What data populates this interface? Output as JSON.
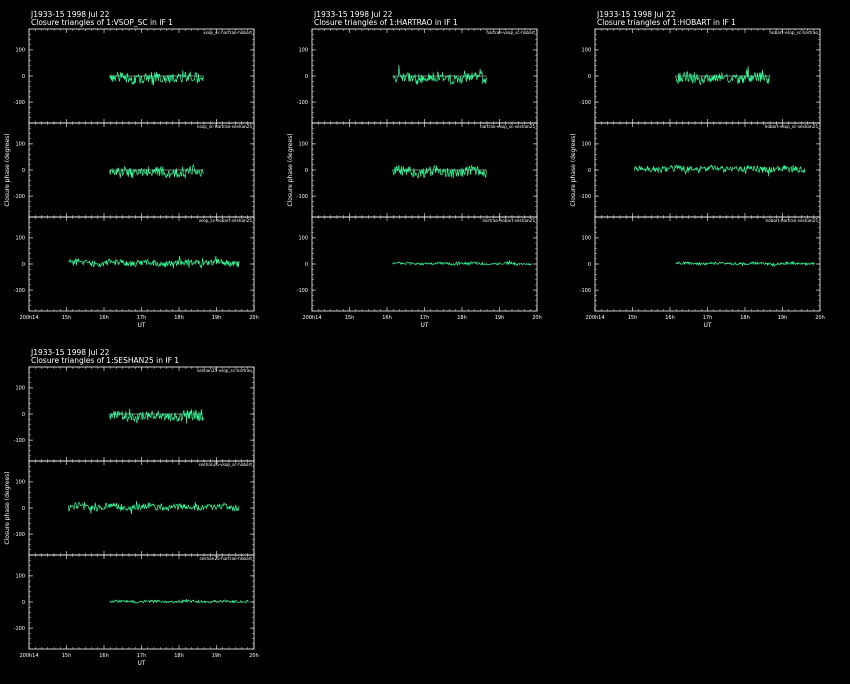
{
  "theme": {
    "background": "#000000",
    "foreground": "#ffffff",
    "trace": "#33ff99"
  },
  "chart_data": [
    {
      "type": "line",
      "title": "J1933-15  1998 Jul 22",
      "subtitle": "Closure triangles of 1:VSOP_SC in IF 1",
      "xlabel": "UT",
      "ylabel": "Closure phase   (degrees)",
      "xticks": [
        "200^h14^",
        "15^h",
        "16^h",
        "17^h",
        "18^h",
        "19^h",
        "20^h"
      ],
      "yticks": [
        "100",
        "0",
        "-100"
      ],
      "xlim": [
        14,
        20
      ],
      "ylim": [
        -180,
        180
      ],
      "panels": [
        {
          "label": "vsop_sc-hartrao-hobart",
          "x_start": 16.15,
          "x_end": 18.65,
          "spread": 24,
          "offset": -8,
          "refline": true
        },
        {
          "label": "vsop_sc-hartrao-seshan25",
          "x_start": 16.15,
          "x_end": 18.65,
          "spread": 24,
          "offset": -8,
          "refline": true
        },
        {
          "label": "vsop_sc-hobart-seshan25",
          "x_start": 15.05,
          "x_end": 19.6,
          "spread": 16,
          "offset": 4,
          "refline": false
        }
      ]
    },
    {
      "type": "line",
      "title": "J1933-15  1998 Jul 22",
      "subtitle": "Closure triangles of 1:HARTRAO in IF 1",
      "xlabel": "UT",
      "ylabel": "Closure phase   (degrees)",
      "xticks": [
        "200^h14^",
        "15^h",
        "16^h",
        "17^h",
        "18^h",
        "19^h",
        "20^h"
      ],
      "yticks": [
        "100",
        "0",
        "-100"
      ],
      "xlim": [
        14,
        20
      ],
      "ylim": [
        -180,
        180
      ],
      "panels": [
        {
          "label": "hartrao-vsop_sc-hobart",
          "x_start": 16.15,
          "x_end": 18.65,
          "spread": 24,
          "offset": -8,
          "refline": true
        },
        {
          "label": "hartrao-vsop_sc-seshan25",
          "x_start": 16.15,
          "x_end": 18.65,
          "spread": 24,
          "offset": -8,
          "refline": true
        },
        {
          "label": "hartrao-hobart-seshan25",
          "x_start": 16.15,
          "x_end": 19.85,
          "spread": 6,
          "offset": 2,
          "refline": false
        }
      ]
    },
    {
      "type": "line",
      "title": "J1933-15  1998 Jul 22",
      "subtitle": "Closure triangles of 1:HOBART in IF 1",
      "xlabel": "UT",
      "ylabel": "Closure phase   (degrees)",
      "xticks": [
        "200^h14^",
        "15^h",
        "16^h",
        "17^h",
        "18^h",
        "19^h",
        "20^h"
      ],
      "yticks": [
        "100",
        "0",
        "-100"
      ],
      "xlim": [
        14,
        20
      ],
      "ylim": [
        -180,
        180
      ],
      "panels": [
        {
          "label": "hobart-vsop_sc-hartrao",
          "x_start": 16.15,
          "x_end": 18.65,
          "spread": 24,
          "offset": -8,
          "refline": true
        },
        {
          "label": "hobart-vsop_sc-seshan25",
          "x_start": 15.05,
          "x_end": 19.6,
          "spread": 16,
          "offset": 4,
          "refline": false
        },
        {
          "label": "hobart-hartrao-seshan25",
          "x_start": 16.15,
          "x_end": 19.85,
          "spread": 6,
          "offset": 2,
          "refline": false
        }
      ]
    },
    {
      "type": "line",
      "title": "J1933-15  1998 Jul 22",
      "subtitle": "Closure triangles of 1:SESHAN25 in IF 1",
      "xlabel": "UT",
      "ylabel": "Closure phase   (degrees)",
      "xticks": [
        "200^h14^",
        "15^h",
        "16^h",
        "17^h",
        "18^h",
        "19^h",
        "20^h"
      ],
      "yticks": [
        "100",
        "0",
        "-100"
      ],
      "xlim": [
        14,
        20
      ],
      "ylim": [
        -180,
        180
      ],
      "panels": [
        {
          "label": "seshan25-vsop_sc-hartrao",
          "x_start": 16.15,
          "x_end": 18.65,
          "spread": 24,
          "offset": -8,
          "refline": true
        },
        {
          "label": "seshan25-vsop_sc-hobart",
          "x_start": 15.05,
          "x_end": 19.6,
          "spread": 16,
          "offset": 4,
          "refline": false
        },
        {
          "label": "seshan25-hartrao-hobart",
          "x_start": 16.15,
          "x_end": 19.85,
          "spread": 6,
          "offset": 2,
          "refline": false
        }
      ]
    }
  ]
}
